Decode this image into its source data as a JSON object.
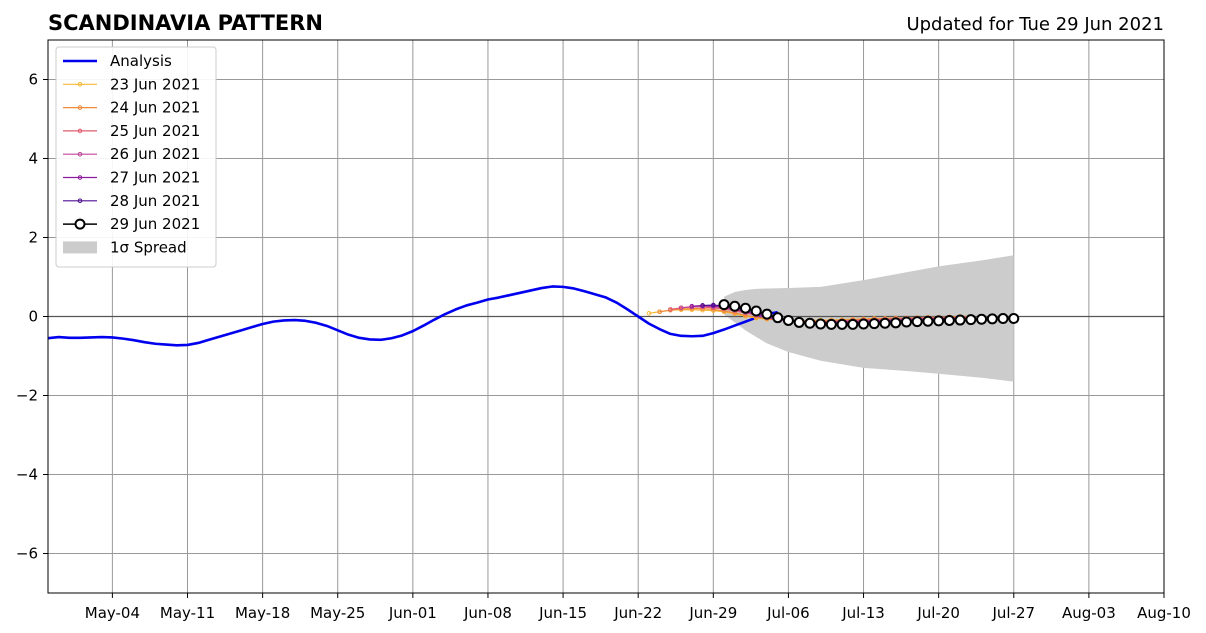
{
  "chart_data": {
    "type": "line",
    "title": "SCANDINAVIA PATTERN",
    "subtitle": "Updated for Tue 29 Jun 2021",
    "xlabel": "",
    "ylabel": "",
    "grid": true,
    "legend_placement": "top-left",
    "xlim": [
      "2021-04-28",
      "2021-08-10"
    ],
    "ylim": [
      -7,
      7
    ],
    "x_ticks": [
      {
        "date": "2021-05-04",
        "label": "May-04"
      },
      {
        "date": "2021-05-11",
        "label": "May-11"
      },
      {
        "date": "2021-05-18",
        "label": "May-18"
      },
      {
        "date": "2021-05-25",
        "label": "May-25"
      },
      {
        "date": "2021-06-01",
        "label": "Jun-01"
      },
      {
        "date": "2021-06-08",
        "label": "Jun-08"
      },
      {
        "date": "2021-06-15",
        "label": "Jun-15"
      },
      {
        "date": "2021-06-22",
        "label": "Jun-22"
      },
      {
        "date": "2021-06-29",
        "label": "Jun-29"
      },
      {
        "date": "2021-07-06",
        "label": "Jul-06"
      },
      {
        "date": "2021-07-13",
        "label": "Jul-13"
      },
      {
        "date": "2021-07-20",
        "label": "Jul-20"
      },
      {
        "date": "2021-07-27",
        "label": "Jul-27"
      },
      {
        "date": "2021-08-03",
        "label": "Aug-03"
      },
      {
        "date": "2021-08-10",
        "label": "Aug-10"
      }
    ],
    "y_ticks": [
      {
        "value": 6,
        "label": "6"
      },
      {
        "value": 4,
        "label": "4"
      },
      {
        "value": 2,
        "label": "2"
      },
      {
        "value": 0,
        "label": "0"
      },
      {
        "value": -2,
        "label": "−2"
      },
      {
        "value": -4,
        "label": "−4"
      },
      {
        "value": -6,
        "label": "−6"
      }
    ],
    "analysis": {
      "name": "Analysis",
      "color": "#0000ee",
      "start_date": "2021-04-28",
      "step_days": 1,
      "values": [
        -0.55,
        -0.52,
        -0.54,
        -0.54,
        -0.53,
        -0.52,
        -0.53,
        -0.56,
        -0.6,
        -0.65,
        -0.69,
        -0.71,
        -0.73,
        -0.72,
        -0.67,
        -0.59,
        -0.51,
        -0.43,
        -0.35,
        -0.27,
        -0.19,
        -0.13,
        -0.1,
        -0.09,
        -0.11,
        -0.16,
        -0.24,
        -0.35,
        -0.46,
        -0.54,
        -0.58,
        -0.59,
        -0.55,
        -0.48,
        -0.37,
        -0.23,
        -0.08,
        0.06,
        0.18,
        0.28,
        0.35,
        0.43,
        0.48,
        0.54,
        0.6,
        0.66,
        0.72,
        0.76,
        0.75,
        0.71,
        0.64,
        0.56,
        0.48,
        0.35,
        0.18,
        0.0,
        -0.18,
        -0.32,
        -0.44,
        -0.49,
        -0.5,
        -0.49,
        -0.42,
        -0.33,
        -0.23,
        -0.13,
        -0.03,
        0.06,
        0.11
      ]
    },
    "forecasts": [
      {
        "name": "23 Jun 2021",
        "color": "#f7b733",
        "start_date": "2021-06-23",
        "values": [
          0.08,
          0.12,
          0.16,
          0.17,
          0.17,
          0.16,
          0.15,
          0.12,
          0.07,
          0.01,
          -0.04,
          -0.07,
          -0.08,
          -0.09,
          -0.1,
          -0.1,
          -0.09,
          -0.09,
          -0.08,
          -0.07,
          -0.06,
          -0.05,
          -0.05,
          -0.04,
          -0.04,
          -0.03,
          -0.02,
          -0.02,
          -0.01,
          0.0,
          0.0
        ]
      },
      {
        "name": "24 Jun 2021",
        "color": "#f08a3a",
        "start_date": "2021-06-24",
        "values": [
          0.12,
          0.16,
          0.19,
          0.2,
          0.2,
          0.18,
          0.14,
          0.09,
          0.03,
          -0.02,
          -0.06,
          -0.08,
          -0.1,
          -0.11,
          -0.11,
          -0.11,
          -0.1,
          -0.09,
          -0.08,
          -0.07,
          -0.06,
          -0.05,
          -0.04,
          -0.04,
          -0.03,
          -0.02,
          -0.02,
          -0.01,
          -0.01,
          0.0
        ]
      },
      {
        "name": "25 Jun 2021",
        "color": "#e05d6f",
        "start_date": "2021-06-25",
        "values": [
          0.18,
          0.22,
          0.24,
          0.24,
          0.22,
          0.19,
          0.14,
          0.09,
          0.03,
          -0.03,
          -0.07,
          -0.1,
          -0.12,
          -0.13,
          -0.13,
          -0.12,
          -0.11,
          -0.1,
          -0.09,
          -0.08,
          -0.07,
          -0.06,
          -0.05,
          -0.04,
          -0.03,
          -0.03,
          -0.02,
          -0.02,
          -0.01
        ]
      },
      {
        "name": "26 Jun 2021",
        "color": "#c1449a",
        "start_date": "2021-06-26",
        "values": [
          0.22,
          0.25,
          0.26,
          0.25,
          0.22,
          0.17,
          0.11,
          0.04,
          -0.03,
          -0.08,
          -0.12,
          -0.14,
          -0.15,
          -0.15,
          -0.14,
          -0.13,
          -0.12,
          -0.11,
          -0.1,
          -0.09,
          -0.08,
          -0.07,
          -0.06,
          -0.05,
          -0.04,
          -0.04,
          -0.03,
          -0.03
        ]
      },
      {
        "name": "27 Jun 2021",
        "color": "#8e1c9e",
        "start_date": "2021-06-27",
        "values": [
          0.26,
          0.28,
          0.27,
          0.24,
          0.19,
          0.13,
          0.06,
          -0.01,
          -0.07,
          -0.12,
          -0.15,
          -0.17,
          -0.17,
          -0.16,
          -0.15,
          -0.14,
          -0.13,
          -0.12,
          -0.11,
          -0.1,
          -0.09,
          -0.08,
          -0.07,
          -0.06,
          -0.05,
          -0.05,
          -0.04
        ]
      },
      {
        "name": "28 Jun 2021",
        "color": "#4b0f94",
        "start_date": "2021-06-28",
        "values": [
          0.28,
          0.29,
          0.27,
          0.23,
          0.17,
          0.1,
          0.03,
          -0.04,
          -0.1,
          -0.14,
          -0.17,
          -0.18,
          -0.18,
          -0.17,
          -0.16,
          -0.15,
          -0.14,
          -0.13,
          -0.12,
          -0.11,
          -0.1,
          -0.09,
          -0.08,
          -0.07,
          -0.06,
          -0.06
        ]
      }
    ],
    "current": {
      "name": "29 Jun 2021",
      "color": "#000000",
      "start_date": "2021-06-30",
      "values": [
        0.3,
        0.26,
        0.21,
        0.14,
        0.06,
        -0.03,
        -0.1,
        -0.15,
        -0.17,
        -0.19,
        -0.2,
        -0.2,
        -0.2,
        -0.19,
        -0.18,
        -0.17,
        -0.16,
        -0.14,
        -0.13,
        -0.12,
        -0.11,
        -0.1,
        -0.09,
        -0.08,
        -0.07,
        -0.06,
        -0.05,
        -0.05
      ]
    },
    "spread": {
      "name": "1σ Spread",
      "color": "#cccccc",
      "dates": [
        "2021-06-30",
        "2021-07-01",
        "2021-07-02",
        "2021-07-03",
        "2021-07-04",
        "2021-07-06",
        "2021-07-09",
        "2021-07-13",
        "2021-07-17",
        "2021-07-20",
        "2021-07-24",
        "2021-07-27"
      ],
      "upper": [
        0.5,
        0.62,
        0.67,
        0.7,
        0.71,
        0.72,
        0.75,
        0.92,
        1.12,
        1.27,
        1.42,
        1.55
      ],
      "lower": [
        0.05,
        -0.15,
        -0.35,
        -0.52,
        -0.68,
        -0.9,
        -1.12,
        -1.3,
        -1.38,
        -1.45,
        -1.55,
        -1.65
      ]
    }
  }
}
